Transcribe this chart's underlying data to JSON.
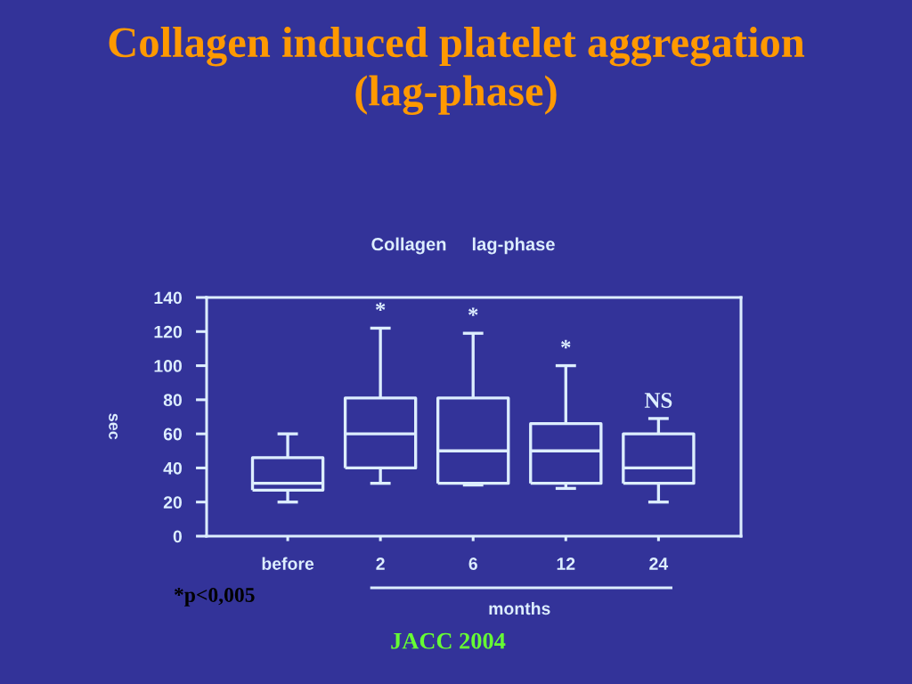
{
  "chart_data": {
    "type": "box",
    "title": "Collagen induced platelet aggregation\n(lag-phase)",
    "subtitle": "Collagen     lag-phase",
    "xlabel": "months",
    "ylabel": "sec",
    "categories": [
      "before",
      "2",
      "6",
      "12",
      "24"
    ],
    "series": [
      {
        "color": "#ddeeff",
        "boxes": [
          {
            "low": 20,
            "q1": 27,
            "median": 31,
            "q3": 46,
            "high": 60
          },
          {
            "low": 31,
            "q1": 40,
            "median": 60,
            "q3": 81,
            "high": 122
          },
          {
            "low": 30,
            "q1": 31,
            "median": 50,
            "q3": 81,
            "high": 119
          },
          {
            "low": 28,
            "q1": 31,
            "median": 50,
            "q3": 66,
            "high": 100
          },
          {
            "low": 20,
            "q1": 31,
            "median": 40,
            "q3": 60,
            "high": 69
          }
        ]
      }
    ],
    "ylim": [
      0,
      140
    ],
    "yticks": [
      0,
      20,
      40,
      60,
      80,
      100,
      120,
      140
    ],
    "annotations": [
      {
        "text": "*",
        "x": "2",
        "y": 122
      },
      {
        "text": "*",
        "x": "6",
        "y": 119
      },
      {
        "text": "*",
        "x": "12",
        "y": 100
      },
      {
        "text": "NS",
        "x": "24",
        "y": 69
      },
      "*p<0,005",
      "JACC 2004"
    ]
  }
}
